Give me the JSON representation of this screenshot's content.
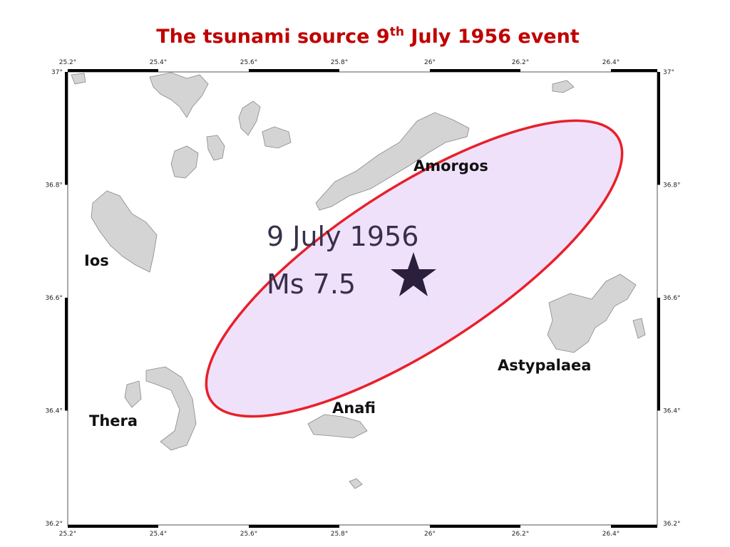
{
  "title": {
    "text": "The tsunami source 9",
    "superscript": "th",
    "text_after": " July 1956 event"
  },
  "map": {
    "lon_ticks": [
      "25.2°",
      "25.4°",
      "25.6°",
      "25.8°",
      "26°",
      "26.2°",
      "26.4°"
    ],
    "lat_ticks": [
      "37°",
      "36.8°",
      "36.6°",
      "36.4°",
      "36.2°"
    ],
    "places": [
      {
        "label": "Amorgos"
      },
      {
        "label": "Ios"
      },
      {
        "label": "Thera"
      },
      {
        "label": "Anafi"
      },
      {
        "label": "Astypalaea"
      }
    ],
    "event": {
      "date": "9 July 1956",
      "magnitude": "Ms 7.5"
    }
  }
}
